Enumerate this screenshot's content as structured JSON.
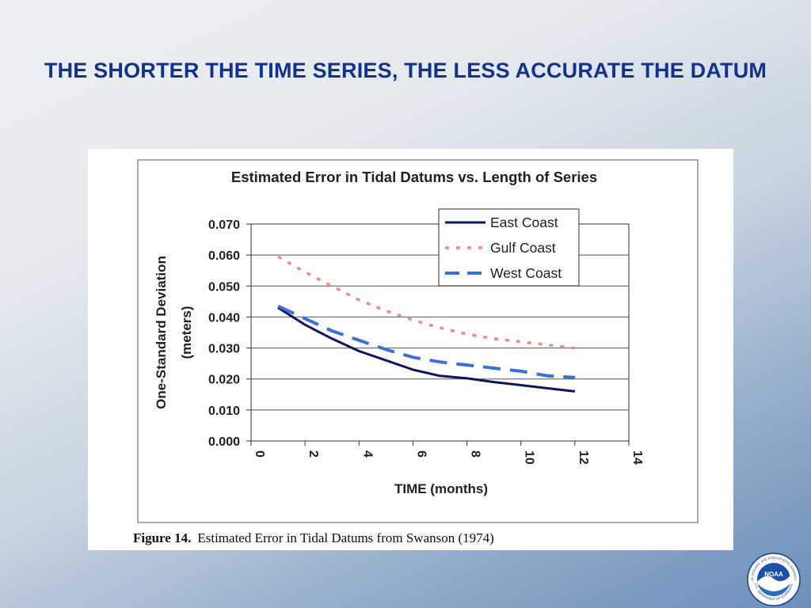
{
  "slide": {
    "title": "THE SHORTER THE TIME SERIES, THE LESS ACCURATE THE DATUM"
  },
  "figure": {
    "caption_lead": "Figure 14.",
    "caption_text": "Estimated Error in Tidal Datums from Swanson (1974)"
  },
  "chart_data": {
    "type": "line",
    "title": "Estimated Error in Tidal Datums vs. Length of Series",
    "xlabel": "TIME (months)",
    "ylabel_lines": [
      "One-Standard Deviation",
      "(meters)"
    ],
    "xlim": [
      0,
      14
    ],
    "ylim": [
      0,
      0.07
    ],
    "x_ticks": [
      "0",
      "2",
      "4",
      "6",
      "8",
      "10",
      "12",
      "14"
    ],
    "y_ticks": [
      "0.000",
      "0.010",
      "0.020",
      "0.030",
      "0.040",
      "0.050",
      "0.060",
      "0.070"
    ],
    "grid": "horizontal",
    "legend_position": "top-right",
    "series": [
      {
        "name": "East Coast",
        "color": "#0d1560",
        "style": "solid",
        "points": [
          [
            1,
            0.043
          ],
          [
            2,
            0.0375
          ],
          [
            3,
            0.033
          ],
          [
            4,
            0.029
          ],
          [
            5,
            0.026
          ],
          [
            6,
            0.023
          ],
          [
            7,
            0.021
          ],
          [
            8,
            0.0202
          ],
          [
            9,
            0.019
          ],
          [
            10,
            0.018
          ],
          [
            11,
            0.017
          ],
          [
            12,
            0.016
          ]
        ]
      },
      {
        "name": "Gulf Coast",
        "color": "#f08a8a",
        "style": "dotted",
        "points": [
          [
            1,
            0.0595
          ],
          [
            2,
            0.0545
          ],
          [
            3,
            0.05
          ],
          [
            4,
            0.0455
          ],
          [
            5,
            0.042
          ],
          [
            6,
            0.039
          ],
          [
            7,
            0.0365
          ],
          [
            8,
            0.0345
          ],
          [
            9,
            0.033
          ],
          [
            10,
            0.032
          ],
          [
            11,
            0.031
          ],
          [
            12,
            0.03
          ]
        ]
      },
      {
        "name": "West Coast",
        "color": "#3a6fd8",
        "style": "dashed",
        "points": [
          [
            1,
            0.0435
          ],
          [
            2,
            0.0395
          ],
          [
            3,
            0.0355
          ],
          [
            4,
            0.0325
          ],
          [
            5,
            0.0295
          ],
          [
            6,
            0.027
          ],
          [
            7,
            0.0255
          ],
          [
            8,
            0.0245
          ],
          [
            9,
            0.0235
          ],
          [
            10,
            0.0225
          ],
          [
            11,
            0.021
          ],
          [
            12,
            0.0205
          ]
        ]
      }
    ]
  },
  "logo": {
    "text": "NOAA",
    "ring_top": "NATIONAL OCEANIC AND ATMOSPHERIC ADMINISTRATION",
    "ring_bottom": "U.S. DEPARTMENT OF COMMERCE"
  }
}
